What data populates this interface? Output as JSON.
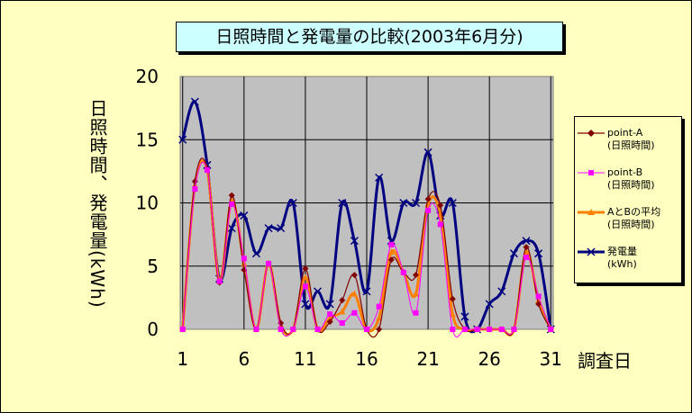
{
  "chart_data": {
    "type": "line",
    "title": "日照時間と発電量の比較(2003年6月分)",
    "xlabel": "調査日",
    "ylabel": "日照時間、発電量(kWh)",
    "x": [
      1,
      2,
      3,
      4,
      5,
      6,
      7,
      8,
      9,
      10,
      11,
      12,
      13,
      14,
      15,
      16,
      17,
      18,
      19,
      20,
      21,
      22,
      23,
      24,
      25,
      26,
      27,
      28,
      29,
      30,
      31
    ],
    "xticks": [
      "1",
      "6",
      "11",
      "16",
      "21",
      "26",
      "31"
    ],
    "yticks": [
      "0",
      "5",
      "10",
      "15",
      "20"
    ],
    "ylim": [
      0,
      20
    ],
    "grid": true,
    "legend_position": "right",
    "series": [
      {
        "name": "point-A",
        "sub": "(日照時間)",
        "color": "#800000",
        "marker": "diamond",
        "values": [
          0,
          11.7,
          12.7,
          3.7,
          10.6,
          4.7,
          0,
          5.2,
          0.5,
          0,
          4.8,
          0,
          0.6,
          2.3,
          4.3,
          0,
          0,
          5.5,
          4.5,
          4.3,
          10.3,
          9.8,
          2.4,
          0,
          0,
          0,
          0,
          0,
          6.5,
          2,
          0
        ]
      },
      {
        "name": "point-B",
        "sub": "(日照時間)",
        "color": "#ff00ff",
        "marker": "square",
        "values": [
          0,
          11.1,
          12.6,
          3.8,
          9.9,
          5.6,
          0,
          5.2,
          0,
          0,
          3.4,
          0,
          1.2,
          0.5,
          1.3,
          0,
          1.8,
          6.7,
          4.5,
          1.3,
          9.4,
          8.3,
          0,
          0,
          0,
          0,
          0,
          0,
          5.7,
          2.6,
          0
        ]
      },
      {
        "name": "AとBの平均",
        "sub": "(日照時間)",
        "color": "#ff8000",
        "marker": "triangle",
        "values": [
          0,
          11.4,
          12.6,
          3.8,
          10.2,
          5.2,
          0,
          5.2,
          0.3,
          0,
          4.1,
          0,
          0.9,
          1.4,
          2.8,
          0,
          0.9,
          6.1,
          4.5,
          2.8,
          9.9,
          9.1,
          1.2,
          0,
          0,
          0,
          0,
          0,
          6.1,
          2.3,
          0
        ]
      },
      {
        "name": "発電量",
        "sub": "(kWh)",
        "color": "#000080",
        "marker": "x",
        "values": [
          15,
          18,
          13,
          4,
          8,
          9,
          6,
          8,
          8,
          10,
          2,
          3,
          2,
          10,
          7,
          3,
          12,
          7,
          10,
          10,
          14,
          9,
          10,
          1,
          0,
          2,
          3,
          6,
          7,
          6,
          0
        ]
      }
    ]
  }
}
